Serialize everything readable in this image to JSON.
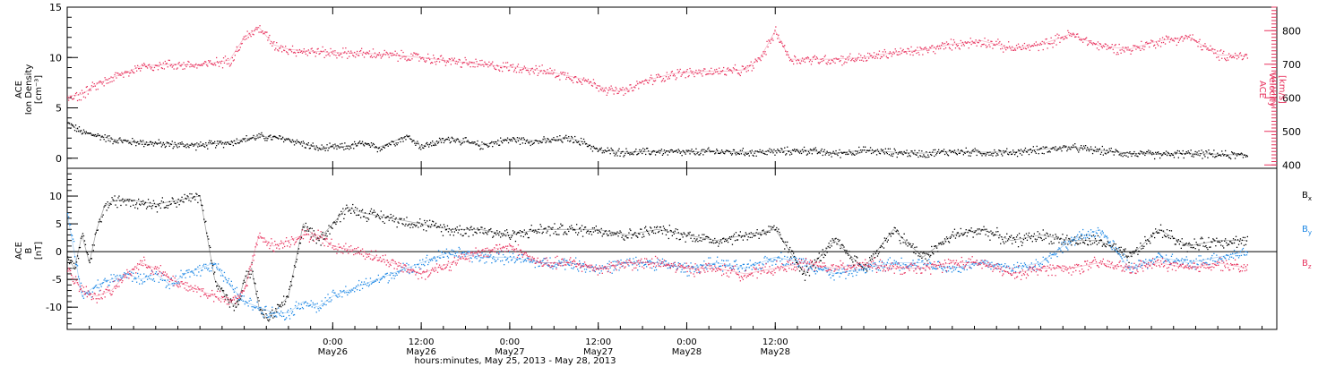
{
  "chart_data": [
    {
      "type": "scatter",
      "panel": "top",
      "left_axis": {
        "label_lines": [
          "ACE",
          "Ion Density",
          "[cm⁻³]"
        ],
        "range": [
          -1,
          15
        ],
        "ticks": [
          0,
          5,
          10,
          15
        ]
      },
      "right_axis": {
        "label_lines": [
          "ACE",
          "Velocity",
          "[km/s]"
        ],
        "range": [
          390,
          870
        ],
        "ticks": [
          400,
          500,
          600,
          700,
          800
        ]
      },
      "colors": {
        "density": "#000000",
        "velocity": "#e8345f"
      },
      "series": [
        {
          "axis": "left",
          "x_hours": [
            0,
            2,
            4,
            6,
            8,
            10,
            14,
            18,
            22,
            26,
            30,
            34,
            38,
            40,
            42,
            44,
            46,
            48,
            52,
            56,
            60,
            64,
            68,
            70,
            72,
            76,
            80,
            84,
            88,
            92,
            96,
            100,
            104,
            108,
            112,
            116,
            120,
            124,
            128,
            132,
            136,
            140,
            144,
            148,
            152,
            156,
            160
          ],
          "y": [
            3.5,
            2.6,
            2.3,
            1.9,
            1.7,
            1.6,
            1.4,
            1.3,
            1.6,
            2.2,
            1.9,
            1.0,
            1.2,
            1.5,
            1.0,
            1.6,
            2.2,
            1.2,
            2.0,
            1.3,
            1.9,
            1.7,
            2.0,
            1.6,
            0.8,
            0.6,
            0.7,
            0.6,
            0.7,
            0.6,
            0.7,
            0.8,
            0.5,
            0.8,
            0.6,
            0.5,
            0.7,
            0.6,
            0.6,
            0.9,
            1.1,
            0.8,
            0.5,
            0.4,
            0.5,
            0.4,
            0.3
          ]
        },
        {
          "axis": "right",
          "x_hours": [
            0,
            2,
            4,
            6,
            8,
            10,
            14,
            18,
            22,
            24,
            26,
            28,
            30,
            32,
            34,
            36,
            40,
            44,
            48,
            52,
            56,
            60,
            62,
            64,
            66,
            70,
            72,
            74,
            76,
            78,
            82,
            86,
            90,
            92,
            94,
            96,
            98,
            104,
            108,
            112,
            116,
            120,
            124,
            128,
            132,
            136,
            140,
            144,
            148,
            152,
            156,
            160
          ],
          "y": [
            605,
            610,
            640,
            660,
            675,
            695,
            700,
            698,
            712,
            780,
            810,
            758,
            745,
            740,
            738,
            735,
            733,
            728,
            720,
            710,
            700,
            692,
            690,
            682,
            675,
            655,
            635,
            620,
            622,
            648,
            672,
            678,
            680,
            684,
            720,
            800,
            715,
            715,
            720,
            735,
            742,
            760,
            770,
            748,
            758,
            790,
            755,
            745,
            770,
            782,
            728,
            725
          ]
        }
      ]
    },
    {
      "type": "scatter",
      "panel": "bottom",
      "left_axis": {
        "label_lines": [
          "ACE",
          "B",
          "[nT]"
        ],
        "range": [
          -14,
          15
        ],
        "ticks": [
          -10,
          -5,
          0,
          5,
          10
        ]
      },
      "zero_line": true,
      "series": [
        {
          "name": "Bx",
          "label": "B",
          "sub": "x",
          "color": "#000000",
          "x_hours": [
            0,
            1,
            2,
            3,
            4,
            5,
            6,
            8,
            10,
            12,
            14,
            16,
            18,
            20,
            22,
            23,
            24,
            25,
            26,
            27,
            28,
            30,
            32,
            34,
            36,
            38,
            40,
            44,
            48,
            52,
            56,
            60,
            64,
            68,
            72,
            76,
            80,
            84,
            88,
            92,
            96,
            100,
            104,
            108,
            112,
            116,
            120,
            124,
            128,
            132,
            136,
            140,
            144,
            148,
            152,
            156,
            160
          ],
          "y": [
            -1,
            -3,
            3,
            -2,
            4,
            8,
            9,
            9.5,
            9,
            8.5,
            9,
            9.5,
            10,
            -5,
            -9,
            -10,
            -5,
            -3,
            -10,
            -12,
            -11,
            -8,
            5,
            2,
            5,
            8,
            7,
            6,
            5,
            4,
            4,
            3,
            4,
            4,
            4,
            3,
            4,
            3,
            2,
            3,
            4,
            -4,
            2,
            -3,
            4,
            -1,
            3,
            4,
            2,
            3,
            2,
            2,
            -1,
            4,
            1,
            2,
            2
          ]
        },
        {
          "name": "By",
          "label": "B",
          "sub": "y",
          "color": "#1e88e5",
          "x_hours": [
            0,
            2,
            4,
            6,
            8,
            10,
            12,
            14,
            16,
            18,
            20,
            22,
            24,
            26,
            28,
            30,
            32,
            34,
            36,
            40,
            44,
            48,
            52,
            56,
            60,
            64,
            68,
            72,
            76,
            80,
            84,
            88,
            92,
            96,
            100,
            104,
            108,
            112,
            116,
            120,
            124,
            128,
            132,
            136,
            140,
            144,
            148,
            152,
            156,
            160
          ],
          "y": [
            7,
            -8,
            -6,
            -5,
            -4,
            -5,
            -4,
            -6,
            -4,
            -3,
            -2,
            -6,
            -9,
            -10,
            -11,
            -11,
            -9,
            -10,
            -8,
            -6,
            -4,
            -2,
            0,
            -1,
            -1,
            -2,
            -2,
            -3,
            -2,
            -2,
            -3,
            -2,
            -3,
            -1,
            -2,
            -4,
            -3,
            -2,
            -2,
            -3,
            -2,
            -3,
            -2,
            2,
            4,
            -3,
            -1,
            -2,
            -1,
            0
          ]
        },
        {
          "name": "Bz",
          "label": "B",
          "sub": "z",
          "color": "#e8345f",
          "x_hours": [
            0,
            2,
            4,
            6,
            8,
            10,
            12,
            14,
            16,
            18,
            20,
            22,
            24,
            26,
            28,
            30,
            32,
            34,
            36,
            40,
            44,
            48,
            52,
            56,
            60,
            64,
            68,
            72,
            76,
            80,
            84,
            88,
            92,
            96,
            100,
            104,
            108,
            112,
            116,
            120,
            124,
            128,
            132,
            136,
            140,
            144,
            148,
            152,
            156,
            160
          ],
          "y": [
            -3,
            -7,
            -8,
            -7,
            -4,
            -2,
            -3,
            -5,
            -6,
            -7,
            -8,
            -9,
            -7,
            3,
            1,
            2,
            3,
            3,
            1,
            0,
            -2,
            -4,
            -2,
            0,
            1,
            -2,
            -2,
            -3,
            -2,
            -2,
            -3,
            -3,
            -4,
            -3,
            -2,
            -3,
            -2,
            -3,
            -3,
            -2,
            -2,
            -4,
            -3,
            -3,
            -2,
            -3,
            -2,
            -3,
            -2,
            -3
          ]
        }
      ]
    }
  ],
  "x_axis": {
    "range_hours": [
      0,
      164
    ],
    "major": [
      {
        "h": 36,
        "time": "0:00",
        "date": "May26"
      },
      {
        "h": 48,
        "time": "12:00",
        "date": "May26"
      },
      {
        "h": 60,
        "time": "0:00",
        "date": "May27"
      },
      {
        "h": 72,
        "time": "12:00",
        "date": "May27"
      },
      {
        "h": 84,
        "time": "0:00",
        "date": "May28"
      },
      {
        "h": 96,
        "time": "12:00",
        "date": "May28"
      }
    ],
    "title": "hours:minutes, May 25, 2013 - May 28, 2013"
  }
}
